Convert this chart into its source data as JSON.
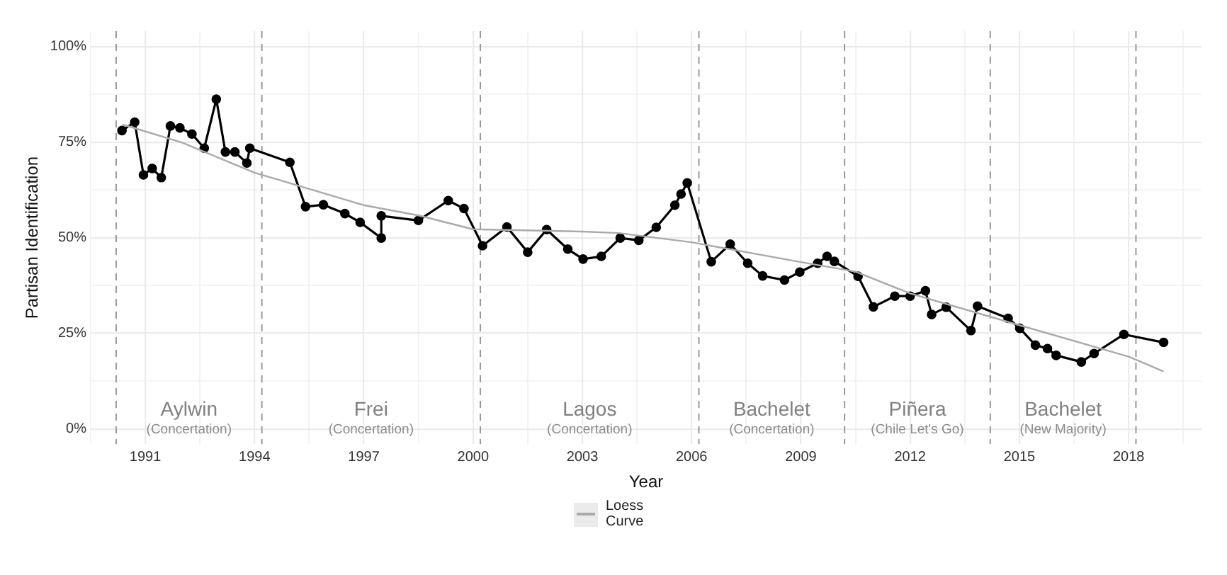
{
  "chart_data": {
    "type": "line",
    "xlabel": "Year",
    "ylabel": "Partisan Identification",
    "xlim": [
      1989.5,
      2020
    ],
    "ylim": [
      -4,
      104
    ],
    "xticks": [
      {
        "value": 1989.5,
        "label": null
      },
      1991,
      {
        "value": 1992.5,
        "label": null
      },
      1994,
      {
        "value": 1995.5,
        "label": null
      },
      1997,
      {
        "value": 1998.5,
        "label": null
      },
      2000,
      {
        "value": 2001.5,
        "label": null
      },
      2003,
      {
        "value": 2004.5,
        "label": null
      },
      2006,
      {
        "value": 2007.5,
        "label": null
      },
      2009,
      {
        "value": 2010.5,
        "label": null
      },
      2012,
      {
        "value": 2013.5,
        "label": null
      },
      2015,
      {
        "value": 2016.5,
        "label": null
      },
      2018,
      {
        "value": 2019.5,
        "label": null
      }
    ],
    "yticks": [
      {
        "value": 0,
        "label": "0%"
      },
      {
        "value": 12.5,
        "label": null
      },
      {
        "value": 25,
        "label": "25%"
      },
      {
        "value": 37.5,
        "label": null
      },
      {
        "value": 50,
        "label": "50%"
      },
      {
        "value": 62.5,
        "label": null
      },
      {
        "value": 75,
        "label": "75%"
      },
      {
        "value": 87.5,
        "label": null
      },
      {
        "value": 100,
        "label": "100%"
      }
    ],
    "grid": true,
    "legend": "bottom",
    "marker": "circle",
    "line_style": "solid",
    "series": [
      {
        "color": "#000000",
        "x": [
          1990.36,
          1990.71,
          1990.95,
          1991.19,
          1991.44,
          1991.69,
          1991.95,
          1992.28,
          1992.62,
          1992.95,
          1993.2,
          1993.46,
          1993.79,
          1993.87,
          1994.97,
          1995.4,
          1995.89,
          1996.48,
          1996.9,
          1997.48,
          1997.48,
          1998.5,
          1999.32,
          1999.75,
          2000.26,
          2000.93,
          2001.5,
          2002.02,
          2002.6,
          2003.02,
          2003.52,
          2004.04,
          2004.55,
          2005.03,
          2005.54,
          2005.71,
          2005.88,
          2006.54,
          2007.06,
          2007.54,
          2007.95,
          2008.55,
          2008.97,
          2009.46,
          2009.72,
          2009.92,
          2010.57,
          2010.99,
          2011.58,
          2012.0,
          2012.42,
          2012.59,
          2012.99,
          2013.67,
          2013.85,
          2014.69,
          2015.01,
          2015.44,
          2015.77,
          2016.01,
          2016.7,
          2017.05,
          2017.87,
          2018.96
        ],
        "values": [
          78.0,
          80.2,
          66.4,
          68.1,
          65.7,
          79.2,
          78.7,
          77.1,
          73.4,
          86.2,
          72.4,
          72.4,
          69.5,
          73.4,
          69.7,
          58.1,
          58.6,
          56.3,
          54.0,
          49.9,
          55.7,
          54.5,
          59.7,
          57.6,
          47.9,
          52.8,
          46.2,
          52.1,
          47.0,
          44.4,
          45.1,
          49.9,
          49.3,
          52.7,
          58.5,
          61.4,
          64.3,
          43.7,
          48.3,
          43.3,
          40.0,
          38.9,
          41.0,
          43.3,
          45.1,
          43.8,
          39.9,
          31.9,
          34.7,
          34.7,
          36.1,
          29.9,
          31.8,
          25.7,
          32.1,
          28.9,
          26.3,
          21.9,
          21.0,
          19.2,
          17.5,
          19.7,
          24.7,
          22.6
        ]
      },
      {
        "name": "Loess Curve",
        "color": "#aaaaaa",
        "marker": "none",
        "x": [
          1990.37,
          1992,
          1994,
          1997,
          1998.5,
          2000,
          2003,
          2004,
          2006,
          2009,
          2010.5,
          2012,
          2015,
          2018,
          2018.96
        ],
        "values": [
          79.6,
          74.9,
          67.0,
          58.5,
          55.8,
          52.2,
          51.6,
          51.2,
          48.8,
          43.6,
          41.1,
          35.4,
          27.1,
          18.9,
          15.0
        ]
      }
    ],
    "ref_lines": [
      {
        "axis": "x",
        "value": 1990.2,
        "color": "#999999",
        "line_style": "dashed"
      },
      {
        "axis": "x",
        "value": 1994.2,
        "color": "#999999",
        "line_style": "dashed"
      },
      {
        "axis": "x",
        "value": 2000.2,
        "color": "#999999",
        "line_style": "dashed"
      },
      {
        "axis": "x",
        "value": 2006.2,
        "color": "#999999",
        "line_style": "dashed"
      },
      {
        "axis": "x",
        "value": 2010.2,
        "color": "#999999",
        "line_style": "dashed"
      },
      {
        "axis": "x",
        "value": 2014.2,
        "color": "#999999",
        "line_style": "dashed"
      },
      {
        "axis": "x",
        "value": 2018.2,
        "color": "#999999",
        "line_style": "dashed"
      }
    ],
    "annotations": [
      "Aylwin",
      "(Concertation)",
      "Frei",
      "(Concertation)",
      "Lagos",
      "(Concertation)",
      "Bachelet",
      "(Concertation)",
      "Piñera",
      "(Chile Let's Go)",
      "Bachelet",
      "(New Majority)"
    ]
  }
}
